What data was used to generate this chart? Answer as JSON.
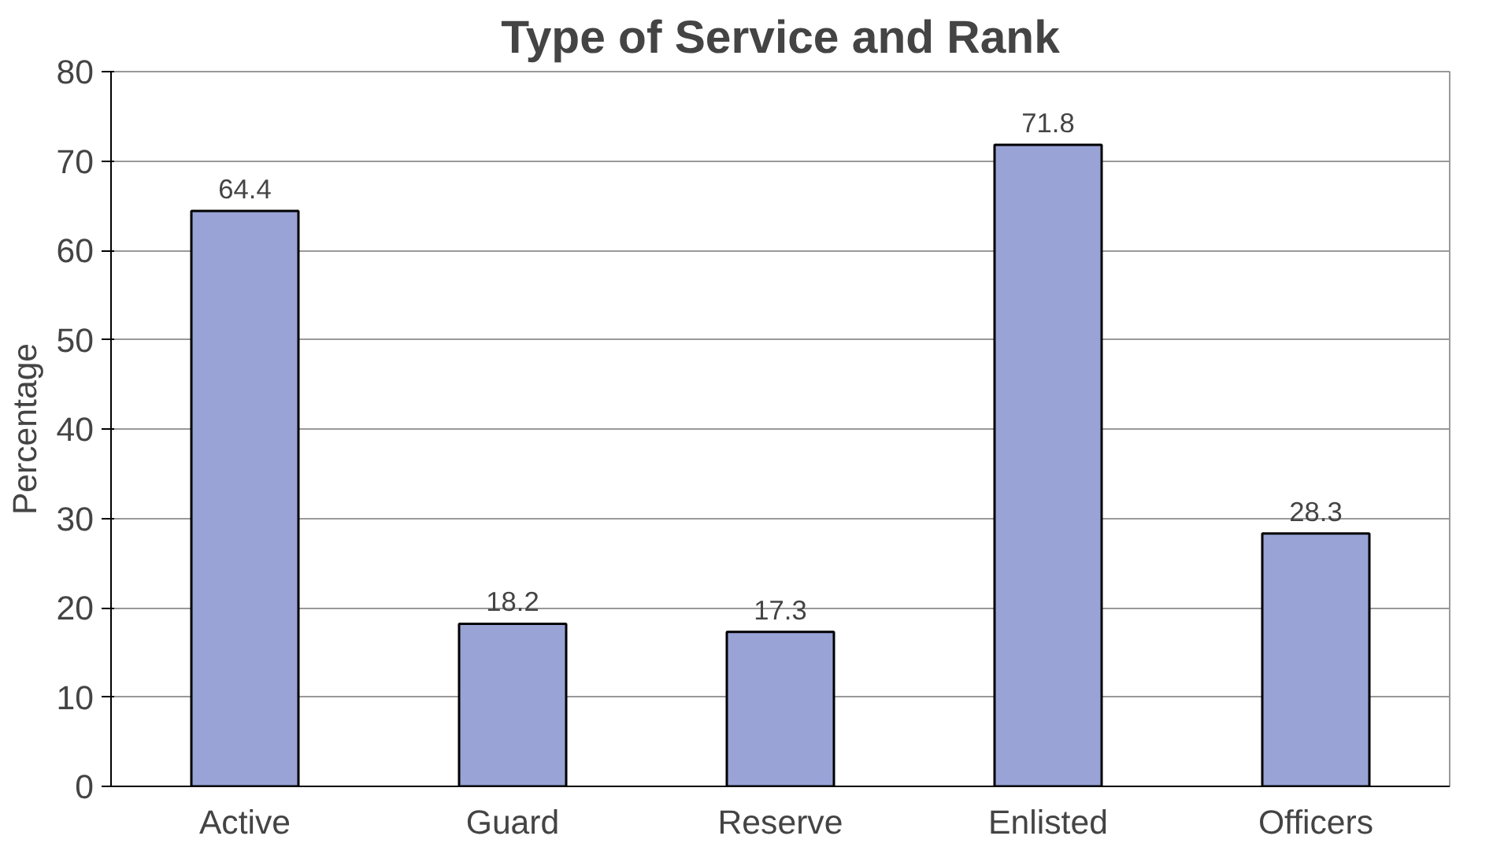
{
  "chart_data": {
    "type": "bar",
    "title": "Type of Service and Rank",
    "ylabel": "Percentage",
    "categories": [
      "Active",
      "Guard",
      "Reserve",
      "Enlisted",
      "Officers"
    ],
    "values": [
      64.4,
      18.2,
      17.3,
      71.8,
      28.3
    ],
    "color": "#99a3d6",
    "ylim": [
      0,
      80
    ],
    "yticks": [
      0,
      10,
      20,
      30,
      40,
      50,
      60,
      70,
      80
    ],
    "grid": "y",
    "data_labels": true
  }
}
